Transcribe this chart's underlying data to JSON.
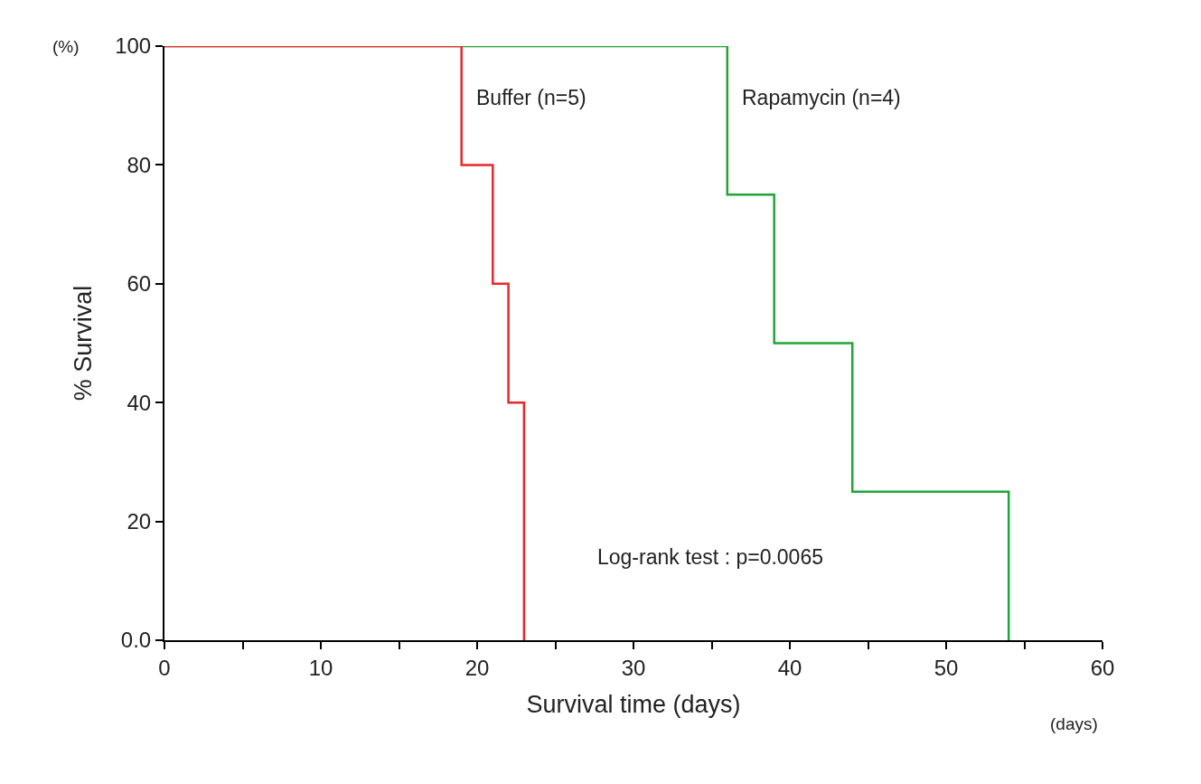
{
  "chart_data": {
    "type": "step",
    "xlabel": "Survival time (days)",
    "ylabel": "% Survival",
    "series": [
      {
        "name": "Rapamycin (n=4)",
        "color": "#22a33a",
        "x": [
          0,
          36,
          39,
          44,
          54
        ],
        "values": [
          100,
          75,
          50,
          25,
          0
        ]
      },
      {
        "name": "Buffer (n=5)",
        "color": "#e8282a",
        "x": [
          0,
          19,
          21,
          22,
          23
        ],
        "values": [
          100,
          80,
          60,
          40,
          0
        ]
      }
    ],
    "xlim": [
      0,
      60
    ],
    "xticks": [
      0,
      {
        "value": 5,
        "label": null
      },
      10,
      {
        "value": 15,
        "label": null
      },
      20,
      {
        "value": 25,
        "label": null
      },
      30,
      {
        "value": 35,
        "label": null
      },
      40,
      {
        "value": 45,
        "label": null
      },
      50,
      {
        "value": 55,
        "label": null
      },
      60
    ],
    "ylim": [
      0,
      100
    ],
    "yticks": [
      {
        "value": 0,
        "label": "0.0"
      },
      20,
      40,
      60,
      80,
      100
    ],
    "annotations": [
      "(%)",
      "(days)",
      "Log-rank test : p=0.0065"
    ],
    "grid": false,
    "legend": false,
    "marker": "none",
    "line_style": "solid"
  }
}
